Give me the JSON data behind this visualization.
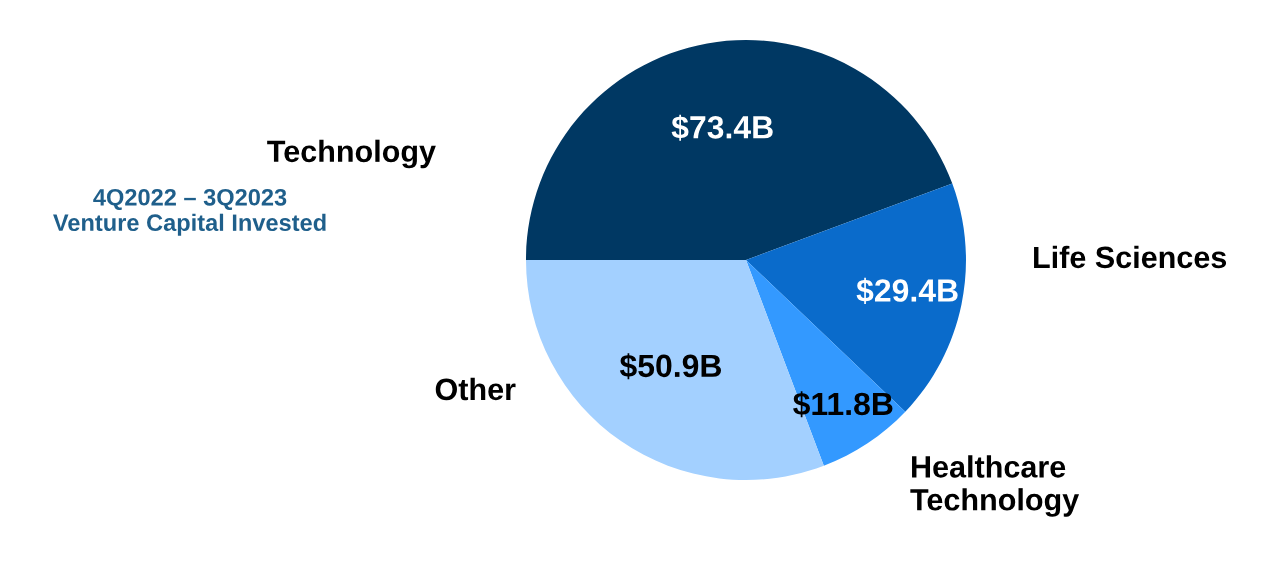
{
  "chart_data": {
    "type": "pie",
    "title": "4Q2022 – 3Q2023\nVenture Capital Invested",
    "categories": [
      "Technology",
      "Life Sciences",
      "Healthcare\nTechnology",
      "Other"
    ],
    "values": [
      73.4,
      29.4,
      11.8,
      50.9
    ],
    "value_labels": [
      "$73.4B",
      "$29.4B",
      "$11.8B",
      "$50.9B"
    ],
    "colors": [
      "#003863",
      "#0a6bcb",
      "#3399ff",
      "#a3d0ff"
    ]
  }
}
